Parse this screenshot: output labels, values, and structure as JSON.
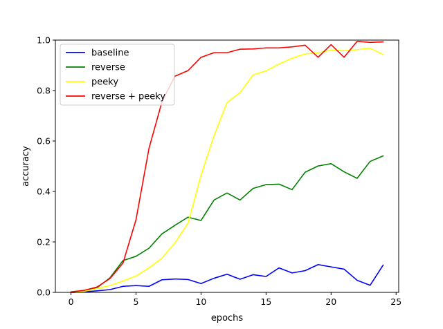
{
  "chart_data": {
    "type": "line",
    "title": "",
    "xlabel": "epochs",
    "ylabel": "accuracy",
    "xlim": [
      -1.2,
      25.2
    ],
    "ylim": [
      0,
      1.0
    ],
    "xticks": [
      0,
      5,
      10,
      15,
      20,
      25
    ],
    "yticks": [
      0.0,
      0.2,
      0.4,
      0.6,
      0.8,
      1.0
    ],
    "xtick_labels": [
      "0",
      "5",
      "10",
      "15",
      "20",
      "25"
    ],
    "ytick_labels": [
      "0.0",
      "0.2",
      "0.4",
      "0.6",
      "0.8",
      "1.0"
    ],
    "grid": false,
    "legend_position": "top-left",
    "x": [
      0,
      1,
      2,
      3,
      4,
      5,
      6,
      7,
      8,
      9,
      10,
      11,
      12,
      13,
      14,
      15,
      16,
      17,
      18,
      19,
      20,
      21,
      22,
      23,
      24
    ],
    "series": [
      {
        "name": "baseline",
        "color": "#0000ff",
        "values": [
          0.0,
          0.002,
          0.006,
          0.011,
          0.024,
          0.027,
          0.024,
          0.05,
          0.053,
          0.051,
          0.035,
          0.056,
          0.072,
          0.052,
          0.07,
          0.063,
          0.097,
          0.077,
          0.086,
          0.11,
          0.101,
          0.092,
          0.048,
          0.028,
          0.108
        ]
      },
      {
        "name": "reverse",
        "color": "#008000",
        "values": [
          0.0,
          0.003,
          0.018,
          0.058,
          0.126,
          0.143,
          0.175,
          0.232,
          0.266,
          0.298,
          0.285,
          0.366,
          0.394,
          0.366,
          0.412,
          0.427,
          0.429,
          0.407,
          0.476,
          0.501,
          0.51,
          0.478,
          0.452,
          0.519,
          0.541
        ]
      },
      {
        "name": "peeky",
        "color": "#ffff00",
        "values": [
          0.0,
          0.004,
          0.015,
          0.027,
          0.045,
          0.065,
          0.097,
          0.136,
          0.197,
          0.274,
          0.464,
          0.621,
          0.752,
          0.792,
          0.862,
          0.878,
          0.905,
          0.928,
          0.945,
          0.95,
          0.96,
          0.958,
          0.962,
          0.968,
          0.943
        ]
      },
      {
        "name": "reverse + peeky",
        "color": "#ff0000",
        "values": [
          0.002,
          0.008,
          0.021,
          0.055,
          0.116,
          0.288,
          0.571,
          0.756,
          0.857,
          0.879,
          0.932,
          0.95,
          0.95,
          0.964,
          0.965,
          0.969,
          0.969,
          0.973,
          0.98,
          0.932,
          0.982,
          0.932,
          0.995,
          0.991,
          0.993
        ]
      }
    ]
  }
}
